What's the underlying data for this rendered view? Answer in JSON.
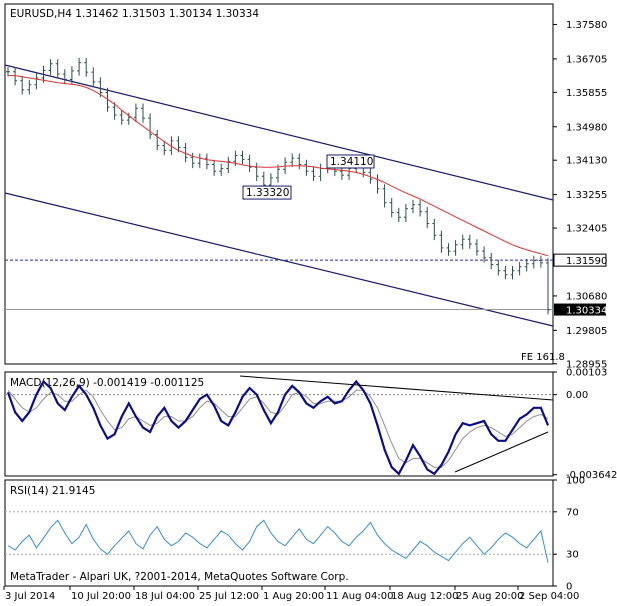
{
  "main_title": "EURUSD,H4  1.31462 1.31503 1.30134 1.30334",
  "footer": "MetaTrader - Alpari UK, ?2001-2014, MetaQuotes Software Corp.",
  "colors": {
    "price": "#2f4f4f",
    "ma": "#e03030",
    "channel": "#1a1a6e",
    "macd": "#0c0c8a",
    "signal": "#909090",
    "rsi": "#3b8ec9",
    "hline": "#2a2a9a"
  },
  "fe_label": "FE 161.8",
  "chart_data": [
    {
      "type": "line",
      "title": "EURUSD,H4",
      "ohlc": {
        "open": 1.31462,
        "high": 1.31503,
        "low": 1.30134,
        "close": 1.30334
      },
      "y_ticks": [
        "1.37580",
        "1.36705",
        "1.35855",
        "1.34980",
        "1.34130",
        "1.33255",
        "1.32405",
        "1.31590",
        "1.30680",
        "1.29805",
        "1.28955"
      ],
      "ylim": [
        1.2895,
        1.381
      ],
      "x_ticks": [
        "3 Jul 2014",
        "10 Jul 20:00",
        "18 Jul 04:00",
        "25 Jul 12:00",
        "1 Aug 20:00",
        "11 Aug 04:00",
        "18 Aug 12:00",
        "25 Aug 20:00",
        "2 Sep 04:00"
      ],
      "series": [
        {
          "values": [
            1.3638,
            1.3615,
            1.3592,
            1.3605,
            1.3622,
            1.3641,
            1.3658,
            1.3632,
            1.3618,
            1.364,
            1.3661,
            1.3637,
            1.3612,
            1.3585,
            1.3548,
            1.3528,
            1.3515,
            1.3522,
            1.3545,
            1.352,
            1.3478,
            1.345,
            1.3438,
            1.3462,
            1.3445,
            1.342,
            1.3405,
            1.3418,
            1.3402,
            1.3385,
            1.3392,
            1.341,
            1.3425,
            1.3415,
            1.3395,
            1.3372,
            1.335,
            1.3368,
            1.339,
            1.3408,
            1.3418,
            1.3402,
            1.3385,
            1.3372,
            1.3392,
            1.3402,
            1.3385,
            1.3375,
            1.3392,
            1.34,
            1.3382,
            1.3365,
            1.334,
            1.3305,
            1.328,
            1.3268,
            1.329,
            1.33,
            1.3282,
            1.3252,
            1.3222,
            1.319,
            1.3182,
            1.3198,
            1.3212,
            1.32,
            1.3182,
            1.3165,
            1.3148,
            1.3132,
            1.3122,
            1.3132,
            1.3142,
            1.315,
            1.3158,
            1.3152,
            1.3033
          ]
        },
        {
          "values": [
            1.3628,
            1.3628,
            1.3625,
            1.3622,
            1.3619,
            1.3616,
            1.3613,
            1.361,
            1.3608,
            1.3606,
            1.3603,
            1.3598,
            1.359,
            1.358,
            1.3568,
            1.3555,
            1.354,
            1.3526,
            1.3512,
            1.3499,
            1.3486,
            1.3473,
            1.346,
            1.3448,
            1.3438,
            1.343,
            1.3423,
            1.3418,
            1.3414,
            1.3412,
            1.341,
            1.3408,
            1.3405,
            1.3401,
            1.3398,
            1.3396,
            1.3395,
            1.3395,
            1.3396,
            1.3398,
            1.3399,
            1.3399,
            1.3398,
            1.3396,
            1.3393,
            1.3391,
            1.3389,
            1.3387,
            1.3385,
            1.3382,
            1.3377,
            1.3371,
            1.3364,
            1.3356,
            1.3347,
            1.3338,
            1.333,
            1.3322,
            1.3314,
            1.3305,
            1.3296,
            1.3287,
            1.3278,
            1.3269,
            1.326,
            1.3251,
            1.3242,
            1.3233,
            1.3224,
            1.3215,
            1.3206,
            1.3198,
            1.3191,
            1.3185,
            1.318,
            1.3175,
            1.317
          ]
        }
      ],
      "level_label": "1.31590",
      "level": 1.3159,
      "current_label": "1.30334",
      "current": 1.30334,
      "annotations": [
        {
          "text": "1.33320",
          "value": 1.3332
        },
        {
          "text": "1.34110",
          "value": 1.3411
        }
      ]
    },
    {
      "type": "line",
      "title": "MACD(12,26,9) -0.001419 -0.001125",
      "y_ticks": [
        "0.00103",
        "0.00",
        "-0.003642"
      ],
      "ylim": [
        -0.0037,
        0.00103
      ],
      "series": [
        {
          "values": [
            0.0001,
            -0.0008,
            -0.0012,
            -0.0008,
            0.0,
            0.0006,
            0.0003,
            -0.0004,
            -0.0007,
            -0.0001,
            0.0004,
            0.0,
            -0.0006,
            -0.0014,
            -0.002,
            -0.0018,
            -0.001,
            -0.0004,
            -0.001,
            -0.0015,
            -0.0017,
            -0.001,
            -0.0006,
            -0.0012,
            -0.0015,
            -0.0012,
            -0.0007,
            -0.0002,
            0.0,
            -0.0005,
            -0.0012,
            -0.0014,
            -0.0008,
            -0.0001,
            0.0003,
            0.0,
            -0.0007,
            -0.0013,
            -0.0008,
            0.0,
            0.0004,
            0.0001,
            -0.0004,
            -0.0006,
            -0.0003,
            -0.0001,
            -0.0004,
            -0.0003,
            0.0002,
            0.0006,
            0.0002,
            -0.0004,
            -0.0014,
            -0.0025,
            -0.0033,
            -0.0036,
            -0.003,
            -0.0023,
            -0.0028,
            -0.0034,
            -0.0036,
            -0.0032,
            -0.0026,
            -0.0018,
            -0.0013,
            -0.0014,
            -0.0013,
            -0.0012,
            -0.0018,
            -0.0021,
            -0.0021,
            -0.0016,
            -0.0011,
            -0.0009,
            -0.0006,
            -0.0006,
            -0.0014
          ]
        },
        {
          "values": [
            0.0002,
            -0.0002,
            -0.0006,
            -0.0008,
            -0.0006,
            -0.0002,
            0.0001,
            0.0,
            -0.0003,
            -0.0003,
            0.0,
            0.0002,
            -0.0001,
            -0.0007,
            -0.0012,
            -0.0016,
            -0.0015,
            -0.0011,
            -0.001,
            -0.0012,
            -0.0014,
            -0.0013,
            -0.001,
            -0.001,
            -0.0012,
            -0.0012,
            -0.001,
            -0.0006,
            -0.0003,
            -0.0004,
            -0.0007,
            -0.001,
            -0.001,
            -0.0006,
            -0.0002,
            -0.0001,
            -0.0004,
            -0.0008,
            -0.0009,
            -0.0005,
            0.0,
            0.0001,
            -0.0001,
            -0.0004,
            -0.0004,
            -0.0003,
            -0.0003,
            -0.0003,
            -0.0001,
            0.0002,
            0.0002,
            -0.0001,
            -0.0006,
            -0.0014,
            -0.0022,
            -0.0029,
            -0.0031,
            -0.0029,
            -0.0029,
            -0.0031,
            -0.0033,
            -0.0033,
            -0.003,
            -0.0025,
            -0.002,
            -0.0017,
            -0.0015,
            -0.0014,
            -0.0015,
            -0.0017,
            -0.0019,
            -0.0018,
            -0.0015,
            -0.0012,
            -0.001,
            -0.0009,
            -0.0011
          ]
        }
      ]
    },
    {
      "type": "line",
      "title": "RSI(14) 21.9145",
      "y_ticks": [
        "100",
        "70",
        "30",
        "0"
      ],
      "ylim": [
        0,
        100
      ],
      "series": [
        {
          "values": [
            38,
            34,
            42,
            48,
            36,
            45,
            55,
            62,
            50,
            40,
            46,
            58,
            44,
            35,
            30,
            38,
            45,
            52,
            40,
            35,
            48,
            56,
            44,
            38,
            42,
            50,
            46,
            40,
            36,
            44,
            52,
            48,
            40,
            34,
            42,
            56,
            62,
            50,
            42,
            38,
            46,
            54,
            44,
            40,
            48,
            56,
            50,
            42,
            38,
            46,
            52,
            60,
            48,
            40,
            34,
            30,
            26,
            34,
            42,
            38,
            32,
            28,
            24,
            32,
            40,
            46,
            38,
            30,
            36,
            44,
            50,
            46,
            40,
            36,
            44,
            52,
            22
          ]
        }
      ]
    }
  ]
}
